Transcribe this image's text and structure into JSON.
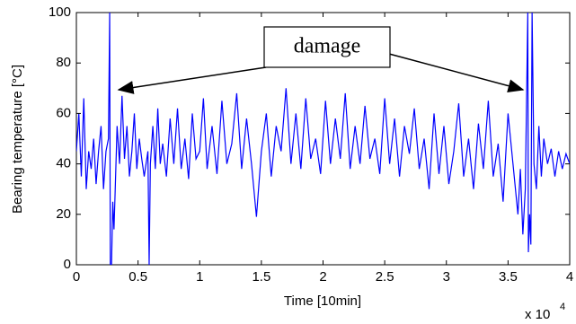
{
  "chart_data": {
    "type": "line",
    "x_label": "Time [10min]",
    "y_label": "Bearing temperature [°C]",
    "x_multiplier": "x 10",
    "x_multiplier_exp": "4",
    "annotation": "damage",
    "xlim": [
      0,
      40000
    ],
    "ylim": [
      0,
      100
    ],
    "xticks": [
      {
        "value": 0,
        "label": "0"
      },
      {
        "value": 5000,
        "label": "0.5"
      },
      {
        "value": 10000,
        "label": "1"
      },
      {
        "value": 15000,
        "label": "1.5"
      },
      {
        "value": 20000,
        "label": "2"
      },
      {
        "value": 25000,
        "label": "2.5"
      },
      {
        "value": 30000,
        "label": "3"
      },
      {
        "value": 35000,
        "label": "3.5"
      },
      {
        "value": 40000,
        "label": "4"
      }
    ],
    "yticks": [
      0,
      20,
      40,
      60,
      80,
      100
    ],
    "grid": false,
    "x": [
      0,
      200,
      400,
      600,
      800,
      1000,
      1200,
      1400,
      1600,
      1800,
      2000,
      2200,
      2400,
      2600,
      2700,
      2750,
      2850,
      2950,
      3050,
      3150,
      3300,
      3500,
      3700,
      3900,
      4100,
      4300,
      4500,
      4700,
      4900,
      5100,
      5300,
      5500,
      5800,
      5900,
      6000,
      6200,
      6400,
      6600,
      6800,
      7000,
      7300,
      7600,
      7900,
      8200,
      8500,
      8800,
      9100,
      9400,
      9700,
      10000,
      10300,
      10600,
      11000,
      11400,
      11800,
      12200,
      12600,
      13000,
      13400,
      13800,
      14200,
      14600,
      15000,
      15400,
      15800,
      16200,
      16600,
      17000,
      17400,
      17800,
      18200,
      18600,
      19000,
      19400,
      19800,
      20200,
      20600,
      21000,
      21400,
      21800,
      22200,
      22600,
      23000,
      23400,
      23800,
      24200,
      24600,
      25000,
      25400,
      25800,
      26200,
      26600,
      27000,
      27400,
      27800,
      28200,
      28600,
      29000,
      29400,
      29800,
      30200,
      30600,
      31000,
      31400,
      31800,
      32200,
      32600,
      33000,
      33400,
      33800,
      34200,
      34600,
      35000,
      35400,
      35800,
      36000,
      36200,
      36400,
      36600,
      36650,
      36750,
      36850,
      36950,
      37100,
      37300,
      37500,
      37700,
      37900,
      38200,
      38500,
      38800,
      39100,
      39400,
      39700,
      40000
    ],
    "series": [
      {
        "color": "#0000ff",
        "values": [
          45,
          60,
          35,
          66,
          30,
          45,
          38,
          50,
          32,
          45,
          55,
          30,
          45,
          50,
          100,
          0,
          0,
          25,
          14,
          30,
          55,
          40,
          67,
          42,
          55,
          35,
          45,
          60,
          38,
          50,
          42,
          35,
          45,
          0,
          40,
          55,
          38,
          62,
          40,
          48,
          35,
          58,
          40,
          62,
          38,
          50,
          34,
          60,
          42,
          45,
          66,
          38,
          55,
          36,
          65,
          40,
          48,
          68,
          38,
          58,
          40,
          19,
          45,
          60,
          35,
          55,
          45,
          70,
          40,
          60,
          38,
          66,
          42,
          50,
          36,
          65,
          40,
          58,
          42,
          68,
          38,
          55,
          40,
          63,
          42,
          50,
          36,
          66,
          40,
          58,
          35,
          55,
          44,
          62,
          38,
          50,
          30,
          60,
          36,
          55,
          32,
          45,
          64,
          35,
          50,
          30,
          56,
          38,
          65,
          35,
          48,
          25,
          60,
          40,
          20,
          38,
          12,
          30,
          100,
          5,
          20,
          8,
          100,
          40,
          30,
          55,
          35,
          50,
          40,
          46,
          35,
          45,
          38,
          44,
          40
        ]
      }
    ]
  }
}
